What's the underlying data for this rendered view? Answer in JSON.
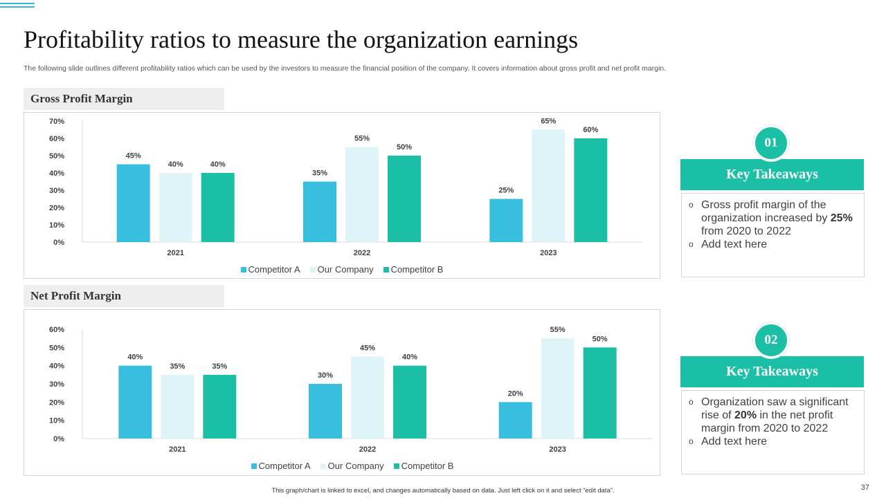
{
  "slide": {
    "title": "Profitability ratios to measure the organization earnings",
    "subtitle": "The following slide outlines different profitability ratios which can be used by the investors to measure the financial position of the company. It covers information about gross profit and net profit margin.",
    "footer_note": "This graph/chart is linked to excel, and changes automatically based on data. Just left click on it and select “edit data”.",
    "page_number": "37"
  },
  "colors": {
    "competitor_a": "#38bfe0",
    "our_company": "#dff4f8",
    "competitor_b": "#1bbfa6",
    "accent": "#1abfa6"
  },
  "sections": {
    "gross_label": "Gross Profit Margin",
    "net_label": "Net Profit Margin"
  },
  "chart_data": [
    {
      "type": "bar",
      "title": "Gross Profit Margin",
      "categories": [
        "2021",
        "2022",
        "2023"
      ],
      "series": [
        {
          "name": "Competitor A",
          "values": [
            45,
            35,
            25
          ]
        },
        {
          "name": "Our Company",
          "values": [
            40,
            55,
            65
          ]
        },
        {
          "name": "Competitor B",
          "values": [
            40,
            50,
            60
          ]
        }
      ],
      "yticks": [
        0,
        10,
        20,
        30,
        40,
        50,
        60,
        70
      ],
      "ylim": [
        0,
        70
      ],
      "unit": "%",
      "grid": false,
      "legend": "bottom"
    },
    {
      "type": "bar",
      "title": "Net Profit Margin",
      "categories": [
        "2021",
        "2022",
        "2023"
      ],
      "series": [
        {
          "name": "Competitor A",
          "values": [
            40,
            30,
            20
          ]
        },
        {
          "name": "Our Company",
          "values": [
            35,
            45,
            55
          ]
        },
        {
          "name": "Competitor B",
          "values": [
            35,
            40,
            50
          ]
        }
      ],
      "yticks": [
        0,
        10,
        20,
        30,
        40,
        50,
        60
      ],
      "ylim": [
        0,
        60
      ],
      "unit": "%",
      "grid": false,
      "legend": "bottom"
    }
  ],
  "takeaways": [
    {
      "number": "01",
      "heading": "Key Takeaways",
      "bullet_symbol": "o",
      "item1_pre": "Gross profit margin of the organization increased by ",
      "item1_bold": "25%",
      "item1_post": " from 2020 to 2022",
      "item2": "Add text here"
    },
    {
      "number": "02",
      "heading": "Key Takeaways",
      "bullet_symbol": "o",
      "item1_pre": "Organization saw a significant rise of ",
      "item1_bold": "20%",
      "item1_post": " in the net profit margin from 2020 to 2022",
      "item2": "Add text here"
    }
  ]
}
